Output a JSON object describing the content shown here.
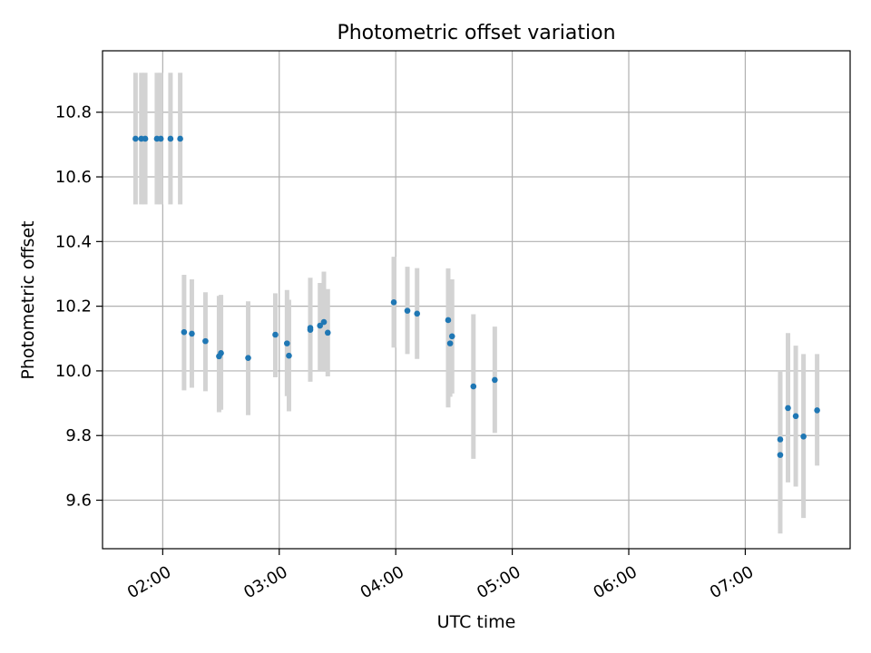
{
  "chart_data": {
    "type": "scatter",
    "title": "Photometric offset variation",
    "xlabel": "UTC time",
    "ylabel": "Photometric offset",
    "x_unit": "UTC time (HH:MM)",
    "xlim": [
      "01:29",
      "07:54"
    ],
    "ylim": [
      9.45,
      10.99
    ],
    "x_ticks": [
      "02:00",
      "03:00",
      "04:00",
      "05:00",
      "06:00",
      "07:00"
    ],
    "y_ticks": [
      "9.6",
      "9.8",
      "10.0",
      "10.2",
      "10.4",
      "10.6",
      "10.8"
    ],
    "grid": true,
    "point_color": "#1f77b4",
    "errorbar_color": "#d3d3d3",
    "series": [
      {
        "points": [
          {
            "x": "01:46",
            "y": 10.718,
            "err_low": 10.515,
            "err_high": 10.922
          },
          {
            "x": "01:49",
            "y": 10.718,
            "err_low": 10.515,
            "err_high": 10.922
          },
          {
            "x": "01:51",
            "y": 10.718,
            "err_low": 10.515,
            "err_high": 10.922
          },
          {
            "x": "01:57",
            "y": 10.718,
            "err_low": 10.515,
            "err_high": 10.922
          },
          {
            "x": "01:59",
            "y": 10.718,
            "err_low": 10.515,
            "err_high": 10.922
          },
          {
            "x": "02:04",
            "y": 10.718,
            "err_low": 10.515,
            "err_high": 10.922
          },
          {
            "x": "02:09",
            "y": 10.718,
            "err_low": 10.515,
            "err_high": 10.922
          },
          {
            "x": "02:11",
            "y": 10.12,
            "err_low": 9.94,
            "err_high": 10.297
          },
          {
            "x": "02:15",
            "y": 10.115,
            "err_low": 9.948,
            "err_high": 10.283
          },
          {
            "x": "02:22",
            "y": 10.092,
            "err_low": 9.937,
            "err_high": 10.243
          },
          {
            "x": "02:29",
            "y": 10.045,
            "err_low": 9.872,
            "err_high": 10.232
          },
          {
            "x": "02:30",
            "y": 10.055,
            "err_low": 9.88,
            "err_high": 10.235
          },
          {
            "x": "02:44",
            "y": 10.04,
            "err_low": 9.863,
            "err_high": 10.215
          },
          {
            "x": "02:58",
            "y": 10.112,
            "err_low": 9.98,
            "err_high": 10.24
          },
          {
            "x": "03:04",
            "y": 10.085,
            "err_low": 9.922,
            "err_high": 10.25
          },
          {
            "x": "03:05",
            "y": 10.047,
            "err_low": 9.875,
            "err_high": 10.22
          },
          {
            "x": "03:16",
            "y": 10.133,
            "err_low": 9.967,
            "err_high": 10.288
          },
          {
            "x": "03:16",
            "y": 10.127,
            "err_low": 9.967,
            "err_high": 10.285
          },
          {
            "x": "03:21",
            "y": 10.14,
            "err_low": 10.0,
            "err_high": 10.272
          },
          {
            "x": "03:23",
            "y": 10.151,
            "err_low": 10.0,
            "err_high": 10.307
          },
          {
            "x": "03:25",
            "y": 10.118,
            "err_low": 9.983,
            "err_high": 10.253
          },
          {
            "x": "03:59",
            "y": 10.212,
            "err_low": 10.072,
            "err_high": 10.353
          },
          {
            "x": "04:06",
            "y": 10.186,
            "err_low": 10.052,
            "err_high": 10.322
          },
          {
            "x": "04:11",
            "y": 10.177,
            "err_low": 10.037,
            "err_high": 10.318
          },
          {
            "x": "04:27",
            "y": 10.157,
            "err_low": 9.887,
            "err_high": 10.317
          },
          {
            "x": "04:28",
            "y": 10.085,
            "err_low": 9.92,
            "err_high": 10.283
          },
          {
            "x": "04:29",
            "y": 10.107,
            "err_low": 9.93,
            "err_high": 10.283
          },
          {
            "x": "04:40",
            "y": 9.952,
            "err_low": 9.728,
            "err_high": 10.175
          },
          {
            "x": "04:51",
            "y": 9.972,
            "err_low": 9.808,
            "err_high": 10.137
          },
          {
            "x": "07:18",
            "y": 9.74,
            "err_low": 9.497,
            "err_high": 9.988
          },
          {
            "x": "07:18",
            "y": 9.788,
            "err_low": 9.577,
            "err_high": 10.0
          },
          {
            "x": "07:22",
            "y": 9.885,
            "err_low": 9.655,
            "err_high": 10.117
          },
          {
            "x": "07:26",
            "y": 9.86,
            "err_low": 9.642,
            "err_high": 10.078
          },
          {
            "x": "07:30",
            "y": 9.797,
            "err_low": 9.545,
            "err_high": 10.052
          },
          {
            "x": "07:37",
            "y": 9.878,
            "err_low": 9.707,
            "err_high": 10.052
          }
        ]
      }
    ]
  }
}
